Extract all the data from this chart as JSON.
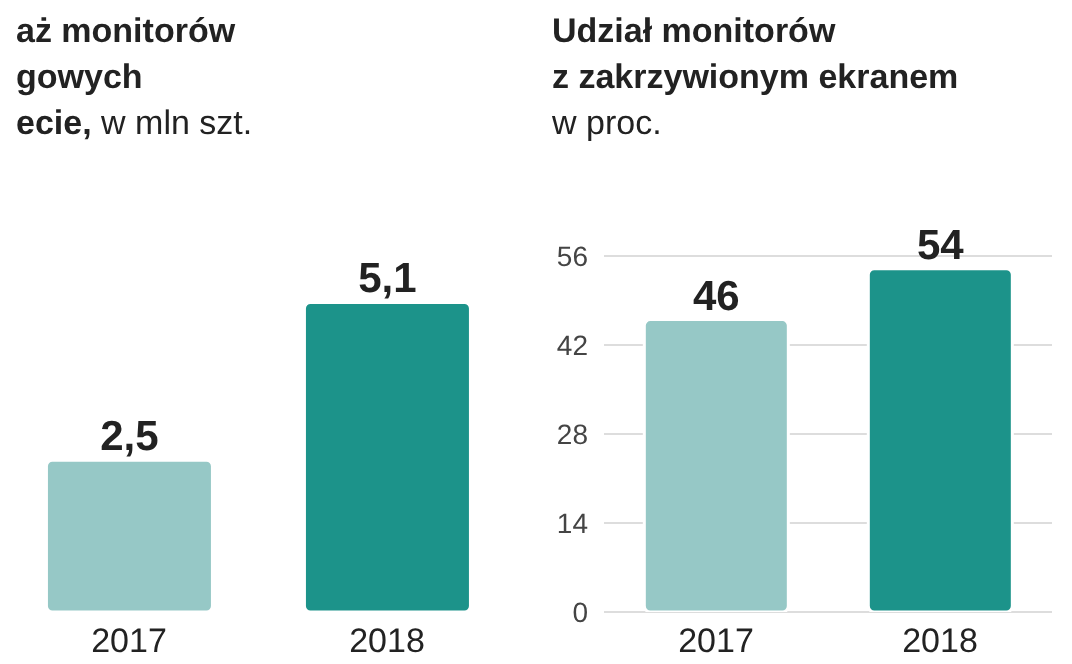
{
  "chart_data": [
    {
      "type": "bar",
      "title": "aż monitorów\ngowych\necie,",
      "subtitle": "w mln szt.",
      "categories": [
        "2017",
        "2018"
      ],
      "values": [
        2.5,
        5.1
      ],
      "colors": [
        "#96c8c6",
        "#1c938a"
      ],
      "value_labels": [
        "2,5",
        "5,1"
      ]
    },
    {
      "type": "bar",
      "title": "Udział monitorów\nz zakrzywionym ekranem",
      "subtitle": "w proc.",
      "categories": [
        "2017",
        "2018"
      ],
      "values": [
        46,
        54
      ],
      "colors": [
        "#96c8c6",
        "#1c938a"
      ],
      "data_labels": true,
      "ylim": [
        0,
        56
      ],
      "yticks": [
        0,
        14,
        28,
        42,
        56
      ],
      "grid": "y"
    }
  ]
}
